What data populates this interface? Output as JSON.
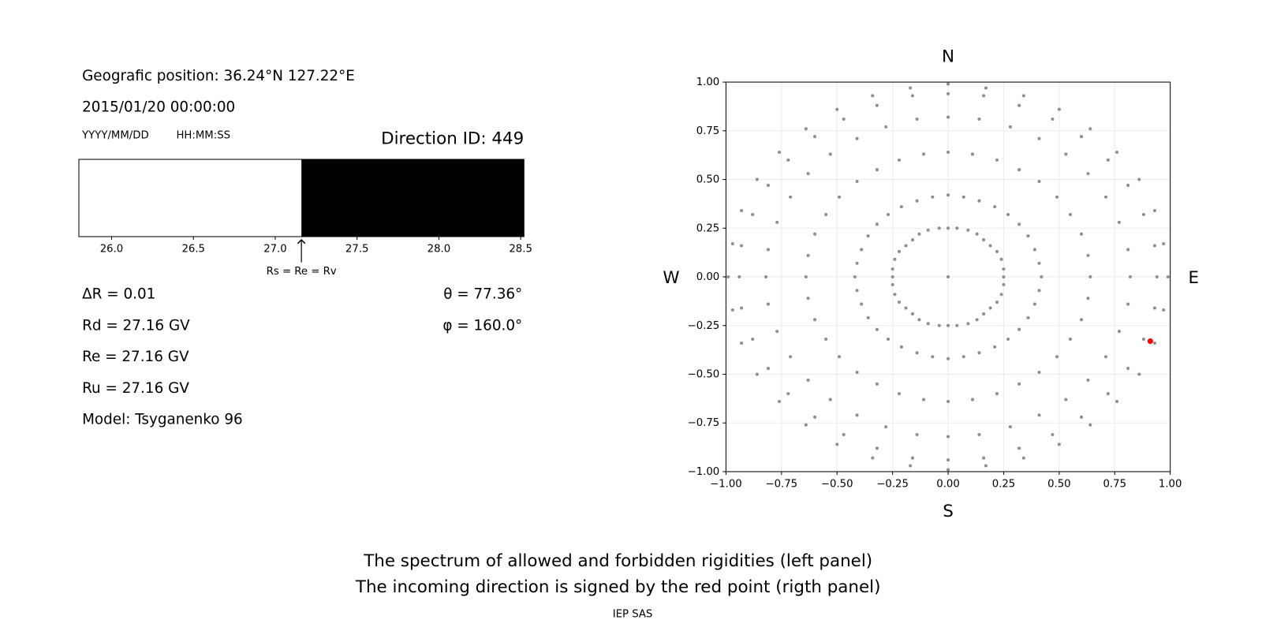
{
  "info": {
    "position": "Geografic position: 36.24°N 127.22°E",
    "datetime": "2015/01/20 00:00:00",
    "date_format": "YYYY/MM/DD",
    "time_format": "HH:MM:SS",
    "direction_id": "Direction ID: 449",
    "delta_r": "ΔR = 0.01",
    "rd": "Rd = 27.16 GV",
    "re": "Re = 27.16 GV",
    "ru": "Ru = 27.16 GV",
    "model": "Model: Tsyganenko 96",
    "theta": "θ = 77.36°",
    "phi": "φ = 160.0°"
  },
  "chart_data": [
    {
      "type": "spectrum",
      "xlim": [
        25.8,
        28.52
      ],
      "xticks": [
        {
          "value": 26,
          "label": "26.0"
        },
        {
          "value": 26.5,
          "label": "26.5"
        },
        {
          "value": 27,
          "label": "27.0"
        },
        {
          "value": 27.5,
          "label": "27.5"
        },
        {
          "value": 28,
          "label": "28.0"
        },
        {
          "value": 28.5,
          "label": "28.5"
        }
      ],
      "segments": [
        {
          "start": 25.8,
          "end": 27.16,
          "color": "#ffffff"
        },
        {
          "start": 27.16,
          "end": 28.52,
          "color": "#000000"
        }
      ],
      "annotation": {
        "text": "Rs = Re = Rv",
        "x": 27.16
      }
    },
    {
      "type": "scatter",
      "xlim": [
        -1,
        1
      ],
      "ylim": [
        -1,
        1
      ],
      "grid": true,
      "xticks": [
        {
          "value": -1,
          "label": "−1.00"
        },
        {
          "value": -0.75,
          "label": "−0.75"
        },
        {
          "value": -0.5,
          "label": "−0.50"
        },
        {
          "value": -0.25,
          "label": "−0.25"
        },
        {
          "value": 0,
          "label": "0.00"
        },
        {
          "value": 0.25,
          "label": "0.25"
        },
        {
          "value": 0.5,
          "label": "0.50"
        },
        {
          "value": 0.75,
          "label": "0.75"
        },
        {
          "value": 1,
          "label": "1.00"
        }
      ],
      "yticks": [
        {
          "value": -1,
          "label": "−1.00"
        },
        {
          "value": -0.75,
          "label": "−0.75"
        },
        {
          "value": -0.5,
          "label": "−0.50"
        },
        {
          "value": -0.25,
          "label": "−0.25"
        },
        {
          "value": 0,
          "label": "0.00"
        },
        {
          "value": 0.25,
          "label": "0.25"
        },
        {
          "value": 0.5,
          "label": "0.50"
        },
        {
          "value": 0.75,
          "label": "0.75"
        },
        {
          "value": 1,
          "label": "1.00"
        }
      ],
      "compass": {
        "north": "N",
        "south": "S",
        "west": "W",
        "east": "E"
      },
      "series": [
        {
          "color": "#8f8f8f",
          "size": 2,
          "x": [
            0
          ],
          "y": [
            0
          ]
        },
        {
          "color": "#8f8f8f",
          "size": 2,
          "x": [
            0.25,
            0.25,
            0.24,
            0.22,
            0.19,
            0.16,
            0.13,
            0.09,
            0.04,
            0,
            -0.04,
            -0.09,
            -0.13,
            -0.16,
            -0.19,
            -0.22,
            -0.24,
            -0.25,
            -0.25,
            -0.25,
            -0.24,
            -0.22,
            -0.19,
            -0.16,
            -0.13,
            -0.09,
            -0.04,
            0,
            0.04,
            0.09,
            0.13,
            0.16,
            0.19,
            0.22,
            0.24,
            0.25
          ],
          "y": [
            0,
            0.04,
            0.09,
            0.13,
            0.16,
            0.19,
            0.22,
            0.24,
            0.25,
            0.25,
            0.25,
            0.24,
            0.22,
            0.19,
            0.16,
            0.13,
            0.09,
            0.04,
            0,
            -0.04,
            -0.09,
            -0.13,
            -0.16,
            -0.19,
            -0.22,
            -0.24,
            -0.25,
            -0.25,
            -0.25,
            -0.24,
            -0.22,
            -0.19,
            -0.16,
            -0.13,
            -0.09,
            -0.04
          ]
        },
        {
          "color": "#8f8f8f",
          "size": 2,
          "x": [
            0.42,
            0.41,
            0.39,
            0.36,
            0.32,
            0.27,
            0.21,
            0.14,
            0.07,
            0,
            -0.07,
            -0.14,
            -0.21,
            -0.27,
            -0.32,
            -0.36,
            -0.39,
            -0.41,
            -0.42,
            -0.41,
            -0.39,
            -0.36,
            -0.32,
            -0.27,
            -0.21,
            -0.14,
            -0.07,
            0,
            0.07,
            0.14,
            0.21,
            0.27,
            0.32,
            0.36,
            0.39,
            0.41
          ],
          "y": [
            0,
            0.07,
            0.14,
            0.21,
            0.27,
            0.32,
            0.36,
            0.39,
            0.41,
            0.42,
            0.41,
            0.39,
            0.36,
            0.32,
            0.27,
            0.21,
            0.14,
            0.07,
            0,
            -0.07,
            -0.14,
            -0.21,
            -0.27,
            -0.32,
            -0.36,
            -0.39,
            -0.41,
            -0.42,
            -0.41,
            -0.39,
            -0.36,
            -0.32,
            -0.27,
            -0.21,
            -0.14,
            -0.07
          ]
        },
        {
          "color": "#8f8f8f",
          "size": 2,
          "x": [
            0.64,
            0.63,
            0.6,
            0.55,
            0.49,
            0.41,
            0.32,
            0.22,
            0.11,
            0,
            -0.11,
            -0.22,
            -0.32,
            -0.41,
            -0.49,
            -0.55,
            -0.6,
            -0.63,
            -0.64,
            -0.63,
            -0.6,
            -0.55,
            -0.49,
            -0.41,
            -0.32,
            -0.22,
            -0.11,
            0,
            0.11,
            0.22,
            0.32,
            0.41,
            0.49,
            0.55,
            0.6,
            0.63
          ],
          "y": [
            0,
            0.11,
            0.22,
            0.32,
            0.41,
            0.49,
            0.55,
            0.6,
            0.63,
            0.64,
            0.63,
            0.6,
            0.55,
            0.49,
            0.41,
            0.32,
            0.22,
            0.11,
            0,
            -0.11,
            -0.22,
            -0.32,
            -0.41,
            -0.49,
            -0.55,
            -0.6,
            -0.63,
            -0.64,
            -0.63,
            -0.6,
            -0.55,
            -0.49,
            -0.41,
            -0.32,
            -0.22,
            -0.11
          ]
        },
        {
          "color": "#8f8f8f",
          "size": 2,
          "x": [
            0.82,
            0.81,
            0.77,
            0.71,
            0.63,
            0.53,
            0.41,
            0.28,
            0.14,
            0,
            -0.14,
            -0.28,
            -0.41,
            -0.53,
            -0.63,
            -0.71,
            -0.77,
            -0.81,
            -0.82,
            -0.81,
            -0.77,
            -0.71,
            -0.63,
            -0.53,
            -0.41,
            -0.28,
            -0.14,
            0,
            0.14,
            0.28,
            0.41,
            0.53,
            0.63,
            0.71,
            0.77,
            0.81
          ],
          "y": [
            0,
            0.14,
            0.28,
            0.41,
            0.53,
            0.63,
            0.71,
            0.77,
            0.81,
            0.82,
            0.81,
            0.77,
            0.71,
            0.63,
            0.53,
            0.41,
            0.28,
            0.14,
            0,
            -0.14,
            -0.28,
            -0.41,
            -0.53,
            -0.63,
            -0.71,
            -0.77,
            -0.81,
            -0.82,
            -0.81,
            -0.77,
            -0.71,
            -0.63,
            -0.53,
            -0.41,
            -0.28,
            -0.14
          ]
        },
        {
          "color": "#8f8f8f",
          "size": 2,
          "x": [
            0.94,
            0.93,
            0.88,
            0.81,
            0.72,
            0.6,
            0.47,
            0.32,
            0.16,
            0,
            -0.16,
            -0.32,
            -0.47,
            -0.6,
            -0.72,
            -0.81,
            -0.88,
            -0.93,
            -0.94,
            -0.93,
            -0.88,
            -0.81,
            -0.72,
            -0.6,
            -0.47,
            -0.32,
            -0.16,
            0,
            0.16,
            0.32,
            0.47,
            0.6,
            0.72,
            0.81,
            0.88,
            0.93
          ],
          "y": [
            0,
            0.16,
            0.32,
            0.47,
            0.6,
            0.72,
            0.81,
            0.88,
            0.93,
            0.94,
            0.93,
            0.88,
            0.81,
            0.72,
            0.6,
            0.47,
            0.32,
            0.16,
            0,
            -0.16,
            -0.32,
            -0.47,
            -0.6,
            -0.72,
            -0.81,
            -0.88,
            -0.93,
            -0.94,
            -0.93,
            -0.88,
            -0.81,
            -0.72,
            -0.6,
            -0.47,
            -0.32,
            -0.16
          ]
        },
        {
          "color": "#8f8f8f",
          "size": 2,
          "x": [
            0.99,
            0.97,
            0.93,
            0.86,
            0.76,
            0.64,
            0.5,
            0.34,
            0.17,
            0,
            -0.17,
            -0.34,
            -0.5,
            -0.64,
            -0.76,
            -0.86,
            -0.93,
            -0.97,
            -0.99,
            -0.97,
            -0.93,
            -0.86,
            -0.76,
            -0.64,
            -0.5,
            -0.34,
            -0.17,
            0,
            0.17,
            0.34,
            0.5,
            0.64,
            0.76,
            0.86,
            0.93,
            0.97
          ],
          "y": [
            0,
            0.17,
            0.34,
            0.5,
            0.64,
            0.76,
            0.86,
            0.93,
            0.97,
            0.99,
            0.97,
            0.93,
            0.86,
            0.76,
            0.64,
            0.5,
            0.34,
            0.17,
            0,
            -0.17,
            -0.34,
            -0.5,
            -0.64,
            -0.76,
            -0.86,
            -0.93,
            -0.97,
            -0.99,
            -0.97,
            -0.93,
            -0.86,
            -0.76,
            -0.64,
            -0.5,
            -0.34,
            -0.17
          ]
        },
        {
          "color": "#ff0000",
          "size": 3.5,
          "x": [
            0.91
          ],
          "y": [
            -0.33
          ]
        }
      ]
    }
  ],
  "caption": [
    "The spectrum of allowed and forbidden rigidities (left panel)",
    "The incoming direction is signed by the red point (rigth panel)"
  ],
  "footer": "IEP SAS"
}
